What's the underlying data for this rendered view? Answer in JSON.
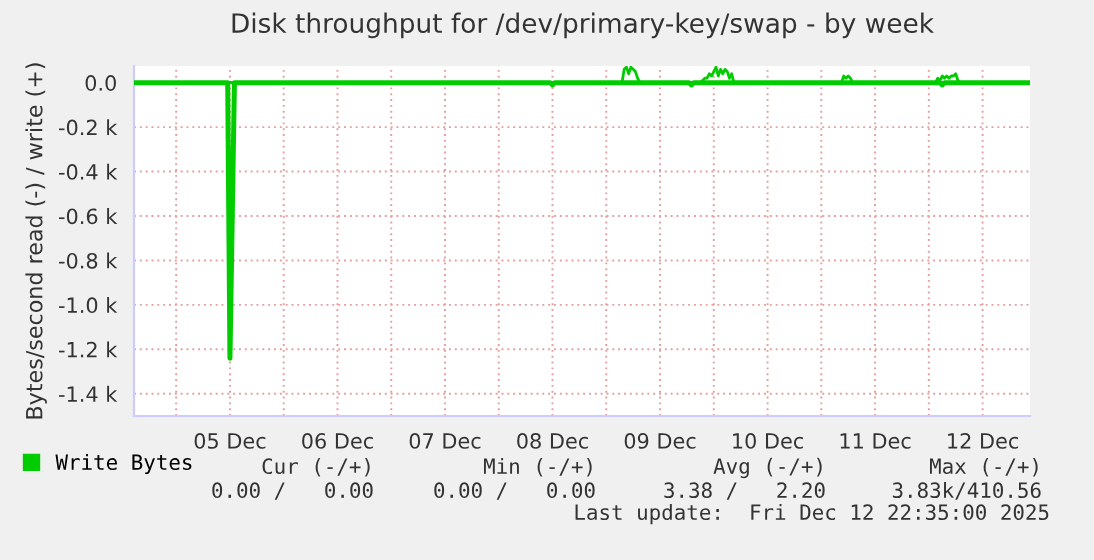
{
  "chart_data": {
    "type": "line",
    "title": "Disk throughput for /dev/primary-key/swap - by week",
    "ylabel": "Bytes/second read (-) / write (+)",
    "xlim": [
      "2025-12-04T14:35",
      "2025-12-12T22:35"
    ],
    "xticks": [
      {
        "value": "2025-12-05T00:00",
        "label": null
      },
      {
        "value": "2025-12-05T12:00",
        "label": "05 Dec"
      },
      {
        "value": "2025-12-06T00:00",
        "label": null
      },
      {
        "value": "2025-12-06T12:00",
        "label": "06 Dec"
      },
      {
        "value": "2025-12-07T00:00",
        "label": null
      },
      {
        "value": "2025-12-07T12:00",
        "label": "07 Dec"
      },
      {
        "value": "2025-12-08T00:00",
        "label": null
      },
      {
        "value": "2025-12-08T12:00",
        "label": "08 Dec"
      },
      {
        "value": "2025-12-09T00:00",
        "label": null
      },
      {
        "value": "2025-12-09T12:00",
        "label": "09 Dec"
      },
      {
        "value": "2025-12-10T00:00",
        "label": null
      },
      {
        "value": "2025-12-10T12:00",
        "label": "10 Dec"
      },
      {
        "value": "2025-12-11T00:00",
        "label": null
      },
      {
        "value": "2025-12-11T12:00",
        "label": "11 Dec"
      },
      {
        "value": "2025-12-12T00:00",
        "label": null
      },
      {
        "value": "2025-12-12T12:00",
        "label": "12 Dec"
      }
    ],
    "ylim": [
      -1500,
      75
    ],
    "yticks": [
      {
        "value": 0,
        "label": "0.0"
      },
      {
        "value": -200,
        "label": "-0.2 k"
      },
      {
        "value": -400,
        "label": "-0.4 k"
      },
      {
        "value": -600,
        "label": "-0.6 k"
      },
      {
        "value": -800,
        "label": "-0.8 k"
      },
      {
        "value": -1000,
        "label": "-1.0 k"
      },
      {
        "value": -1200,
        "label": "-1.2 k"
      },
      {
        "value": -1400,
        "label": "-1.4 k"
      }
    ],
    "grid": true,
    "legend": "bottom",
    "ref_lines": [
      {
        "axis": "y",
        "value": 0,
        "color": "#000000"
      }
    ],
    "series": [
      {
        "name": "Write Bytes",
        "color": "#00cc00",
        "x": [
          "2025-12-04T14:35",
          "2025-12-09T03:30",
          "2025-12-09T04:00",
          "2025-12-09T04:30",
          "2025-12-09T05:00",
          "2025-12-09T05:30",
          "2025-12-09T06:00",
          "2025-12-09T06:30",
          "2025-12-09T07:00",
          "2025-12-09T07:30",
          "2025-12-09T21:00",
          "2025-12-09T21:30",
          "2025-12-09T22:00",
          "2025-12-09T22:30",
          "2025-12-09T23:00",
          "2025-12-09T23:30",
          "2025-12-10T00:00",
          "2025-12-10T00:30",
          "2025-12-10T01:00",
          "2025-12-10T01:30",
          "2025-12-10T02:00",
          "2025-12-10T02:30",
          "2025-12-10T03:00",
          "2025-12-10T03:30",
          "2025-12-10T04:00",
          "2025-12-10T04:30",
          "2025-12-11T04:30",
          "2025-12-11T05:00",
          "2025-12-11T05:30",
          "2025-12-11T06:00",
          "2025-12-11T06:30",
          "2025-12-11T07:00",
          "2025-12-12T01:30",
          "2025-12-12T02:00",
          "2025-12-12T02:30",
          "2025-12-12T03:00",
          "2025-12-12T03:30",
          "2025-12-12T04:00",
          "2025-12-12T04:30",
          "2025-12-12T05:00",
          "2025-12-12T05:30",
          "2025-12-12T06:00",
          "2025-12-12T06:30",
          "2025-12-12T07:00",
          "2025-12-12T22:35"
        ],
        "values": [
          0,
          0,
          60,
          70,
          40,
          70,
          60,
          50,
          20,
          0,
          0,
          10,
          20,
          20,
          40,
          30,
          50,
          70,
          30,
          60,
          40,
          60,
          50,
          20,
          40,
          0,
          0,
          30,
          20,
          30,
          20,
          0,
          0,
          20,
          10,
          30,
          20,
          30,
          20,
          30,
          30,
          40,
          10,
          0,
          0
        ]
      },
      {
        "color": "#00cc00",
        "x": [
          "2025-12-04T14:35",
          "2025-12-05T11:30",
          "2025-12-05T12:00",
          "2025-12-05T13:00",
          "2025-12-08T11:30",
          "2025-12-08T12:00",
          "2025-12-08T12:30",
          "2025-12-09T18:30",
          "2025-12-09T19:00",
          "2025-12-09T19:30",
          "2025-12-12T02:30",
          "2025-12-12T03:00",
          "2025-12-12T03:30",
          "2025-12-12T22:35"
        ],
        "values": [
          0,
          0,
          -1240,
          0,
          0,
          -10,
          0,
          0,
          -10,
          0,
          0,
          -10,
          0,
          0
        ]
      }
    ],
    "annotations": [
      "Cur (-/+)",
      "Min (-/+)",
      "Avg (-/+)",
      "Max (-/+)",
      "0.00 /   0.00",
      "0.00 /   0.00",
      "3.38 /   2.20",
      "3.83k/410.56",
      "Last update:  Fri Dec 12 22:35:00 2025"
    ]
  }
}
